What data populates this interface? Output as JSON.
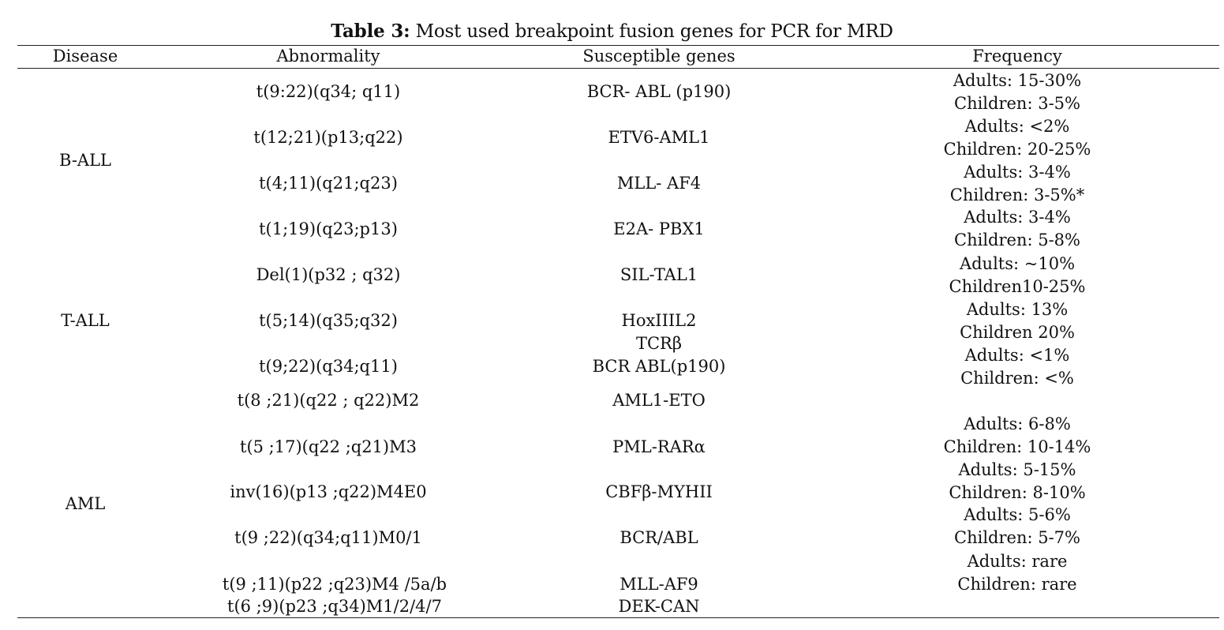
{
  "title": {
    "label": "Table 3:",
    "text": "Most used breakpoint fusion genes for PCR for MRD"
  },
  "headers": {
    "disease": "Disease",
    "abnormality": "Abnormality",
    "genes": "Susceptible genes",
    "frequency": "Frequency"
  },
  "diseases": {
    "ball": "B-ALL",
    "tall": "T-ALL",
    "aml": "AML"
  },
  "abnormalities": [
    "t(9:22)(q34; q11)",
    "t(12;21)(p13;q22)",
    "t(4;11)(q21;q23)",
    "t(1;19)(q23;p13)",
    "Del(1)(p32 ; q32)",
    "t(5;14)(q35;q32)",
    "t(9;22)(q34;q11)",
    "t(8 ;21)(q22 ; q22)M2",
    "t(5 ;17)(q22 ;q21)M3",
    "inv(16)(p13 ;q22)M4E0",
    "t(9 ;22)(q34;q11)M0/1",
    "t(9 ;11)(p22 ;q23)M4 /5a/b",
    "t(6 ;9)(p23 ;q34)M1/2/4/7"
  ],
  "genes": [
    "BCR- ABL (p190)",
    "ETV6-AML1",
    "MLL- AF4",
    "E2A- PBX1",
    "SIL-TAL1",
    "HoxIIIL2",
    "TCRβ",
    "BCR ABL(p190)",
    "AML1-ETO",
    "PML-RARα",
    "CBFβ-MYHII",
    "BCR/ABL",
    "MLL-AF9",
    "DEK-CAN"
  ],
  "frequencies": [
    [
      "Adults: 15-30%",
      "Children: 3-5%"
    ],
    [
      "Adults: <2%",
      "Children: 20-25%"
    ],
    [
      "Adults: 3-4%",
      "Children: 3-5%*"
    ],
    [
      "Adults: 3-4%",
      "Children: 5-8%"
    ],
    [
      "Adults: ~10%",
      "Children10-25%"
    ],
    [
      "Adults: 13%",
      "Children 20%"
    ],
    [
      "Adults: <1%",
      "Children: <%"
    ],
    [
      "Adults: 6-8%",
      "Children: 10-14%"
    ],
    [
      "Adults: 5-15%",
      "Children: 8-10%"
    ],
    [
      "Adults: 5-6%",
      "Children: 5-7%"
    ],
    [
      "Adults: rare",
      "Children: rare"
    ]
  ]
}
